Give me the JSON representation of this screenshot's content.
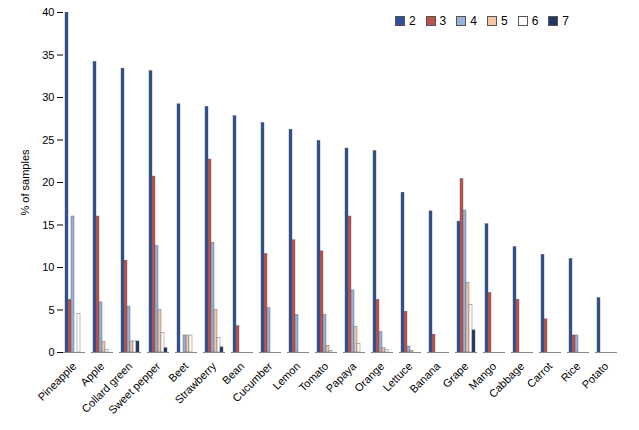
{
  "chart_data": {
    "type": "bar",
    "y_label": "% of samples",
    "categories": [
      "Pineapple",
      "Apple",
      "Collard green",
      "Sweet pepper",
      "Beet",
      "Strawberry",
      "Bean",
      "Cucumber",
      "Lemon",
      "Tomato",
      "Papaya",
      "Orange",
      "Lettuce",
      "Banana",
      "Grape",
      "Mango",
      "Cabbage",
      "Carrot",
      "Rice",
      "Potato"
    ],
    "series": [
      {
        "name": "2",
        "color": "#2c4f96",
        "values": [
          40,
          34.2,
          33.4,
          33.1,
          29.2,
          28.9,
          27.8,
          27,
          26.2,
          24.9,
          24,
          23.7,
          18.8,
          16.6,
          15.4,
          15.1,
          12.4,
          11.5,
          11,
          6.4
        ]
      },
      {
        "name": "3",
        "color": "#c0504d",
        "values": [
          6.2,
          16,
          10.8,
          20.7,
          0,
          22.7,
          3.1,
          11.6,
          13.2,
          11.9,
          16,
          6.2,
          4.8,
          2.1,
          20.4,
          7,
          6.2,
          3.9,
          2,
          0
        ]
      },
      {
        "name": "4",
        "color": "#95b3d7",
        "values": [
          16,
          5.9,
          5.4,
          12.5,
          2,
          12.9,
          0,
          5.2,
          4.4,
          4.4,
          7.3,
          2.4,
          0.7,
          0,
          16.7,
          0,
          0,
          0,
          2,
          0
        ]
      },
      {
        "name": "5",
        "color": "#f2c4a8",
        "values": [
          0,
          1.2,
          1.3,
          5,
          2,
          5,
          0,
          0,
          0,
          0.8,
          3,
          0.5,
          0.2,
          0,
          8.2,
          0,
          0,
          0,
          0,
          0
        ]
      },
      {
        "name": "6",
        "color": "#ffffff",
        "values": [
          4.5,
          0.3,
          1.3,
          2.3,
          2,
          1.7,
          0,
          0,
          0,
          0.2,
          1,
          0.3,
          0,
          0,
          5.6,
          0,
          0,
          0,
          0,
          0
        ]
      },
      {
        "name": "7",
        "color": "#1f3864",
        "values": [
          0,
          0,
          1.3,
          0.5,
          0,
          0.6,
          0,
          0,
          0,
          0,
          0,
          0,
          0,
          0,
          2.6,
          0,
          0,
          0,
          0,
          0
        ]
      }
    ],
    "ylim": [
      0,
      40
    ],
    "yticks": [
      0,
      5,
      10,
      15,
      20,
      25,
      30,
      35,
      40
    ],
    "legend": "top-right",
    "grid": false
  }
}
